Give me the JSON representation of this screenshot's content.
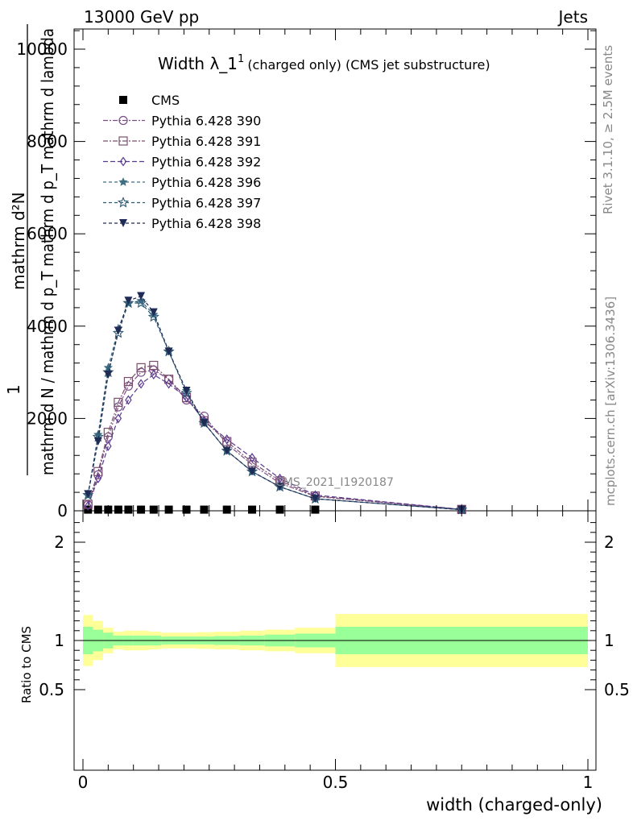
{
  "header": {
    "left": "13000 GeV pp",
    "right": "Jets"
  },
  "side_labels": {
    "rivet": "Rivet 3.1.10, ≥ 2.5M events",
    "mcplots": "mcplots.cern.ch [arXiv:1306.3436]"
  },
  "analysis_id": "CMS_2021_I1920187",
  "title": {
    "main": "Width λ_1",
    "sup": "1",
    "sub": "(charged only) (CMS jet substructure)"
  },
  "ylabel_main": {
    "line1": "1",
    "frac_num": "mathrm d²N",
    "frac_den": "mathrm d N / mathrm d p_T  mathrm d p_T mathrm d lambda"
  },
  "ylabel_ratio": "Ratio to CMS",
  "xlabel": "width (charged-only)",
  "legend": [
    {
      "label": "CMS",
      "color": "#000000",
      "marker": "square-filled",
      "dash": ""
    },
    {
      "label": "Pythia 6.428 390",
      "color": "#7a4f86",
      "marker": "circle-open",
      "dash": "6,2,2,2"
    },
    {
      "label": "Pythia 6.428 391",
      "color": "#7a4f6e",
      "marker": "square-open",
      "dash": "6,2,2,2"
    },
    {
      "label": "Pythia 6.428 392",
      "color": "#5a3a8f",
      "marker": "diamond-open",
      "dash": "6,3"
    },
    {
      "label": "Pythia 6.428 396",
      "color": "#3d6e84",
      "marker": "star-filled",
      "dash": "4,3"
    },
    {
      "label": "Pythia 6.428 397",
      "color": "#2f5a74",
      "marker": "star-open",
      "dash": "4,3"
    },
    {
      "label": "Pythia 6.428 398",
      "color": "#1f2a55",
      "marker": "triangle-down-filled",
      "dash": "4,3"
    }
  ],
  "chart_data": {
    "type": "line",
    "main_panel": {
      "xlim": [
        -0.02,
        1.02
      ],
      "ylim": [
        0,
        10500
      ],
      "yticks": [
        0,
        2000,
        4000,
        6000,
        8000,
        10000
      ],
      "x": [
        0.01,
        0.03,
        0.05,
        0.07,
        0.09,
        0.115,
        0.14,
        0.17,
        0.205,
        0.24,
        0.285,
        0.335,
        0.39,
        0.46,
        0.75
      ],
      "series": [
        {
          "name": "CMS",
          "values": [
            25,
            25,
            25,
            25,
            25,
            25,
            25,
            25,
            25,
            25,
            25,
            25,
            25,
            25,
            25
          ]
        },
        {
          "name": "Pythia 6.428 390",
          "values": [
            130,
            780,
            1600,
            2250,
            2700,
            3000,
            3050,
            2850,
            2400,
            2050,
            1450,
            1000,
            600,
            310,
            30
          ]
        },
        {
          "name": "Pythia 6.428 391",
          "values": [
            140,
            850,
            1700,
            2350,
            2800,
            3100,
            3150,
            2850,
            2450,
            1950,
            1500,
            1050,
            650,
            320,
            30
          ]
        },
        {
          "name": "Pythia 6.428 392",
          "values": [
            110,
            700,
            1400,
            2000,
            2400,
            2750,
            2950,
            2750,
            2450,
            1950,
            1550,
            1150,
            700,
            340,
            30
          ]
        },
        {
          "name": "Pythia 6.428 396",
          "values": [
            350,
            1650,
            3100,
            3950,
            4500,
            4550,
            4250,
            3450,
            2600,
            1900,
            1300,
            850,
            520,
            260,
            25
          ]
        },
        {
          "name": "Pythia 6.428 397",
          "values": [
            340,
            1600,
            3000,
            3850,
            4500,
            4500,
            4200,
            3450,
            2550,
            1900,
            1300,
            850,
            520,
            260,
            25
          ]
        },
        {
          "name": "Pythia 6.428 398",
          "values": [
            360,
            1500,
            2950,
            3900,
            4550,
            4650,
            4300,
            3450,
            2600,
            1900,
            1300,
            850,
            520,
            260,
            25
          ]
        }
      ]
    },
    "ratio_panel": {
      "ylim": [
        0.4,
        2.3
      ],
      "yticks": [
        0.5,
        1,
        2
      ],
      "reference": 1.0,
      "bin_edges": [
        0.0,
        0.02,
        0.04,
        0.06,
        0.08,
        0.1,
        0.13,
        0.155,
        0.185,
        0.225,
        0.26,
        0.31,
        0.36,
        0.42,
        0.5,
        1.0
      ],
      "band_inner": [
        0.14,
        0.11,
        0.08,
        0.05,
        0.05,
        0.05,
        0.05,
        0.04,
        0.04,
        0.04,
        0.045,
        0.05,
        0.06,
        0.07,
        0.14
      ],
      "band_outer": [
        0.26,
        0.2,
        0.13,
        0.09,
        0.1,
        0.1,
        0.09,
        0.08,
        0.08,
        0.085,
        0.09,
        0.1,
        0.11,
        0.13,
        0.27
      ]
    },
    "xticks": [
      0,
      0.5,
      1
    ]
  }
}
